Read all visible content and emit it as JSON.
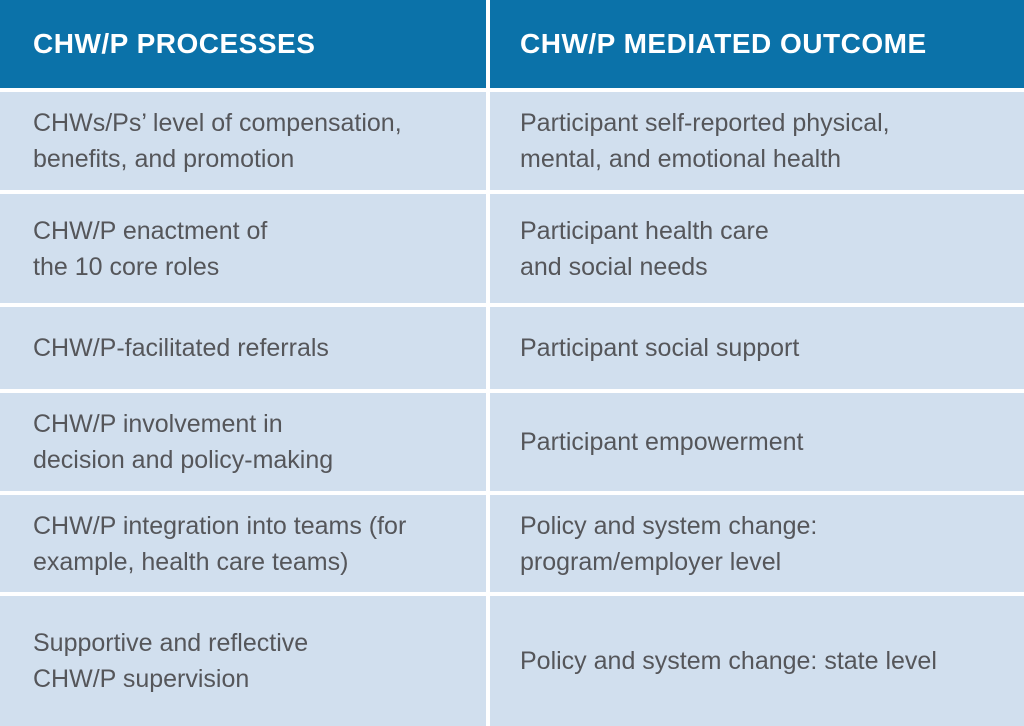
{
  "chart_data": {
    "type": "table",
    "columns": [
      "CHW/P PROCESSES",
      "CHW/P MEDIATED OUTCOME"
    ],
    "rows": [
      {
        "process": "CHWs/Ps’ level of compensation,\nbenefits, and promotion",
        "outcome": "Participant self-reported physical,\nmental, and emotional health"
      },
      {
        "process": "CHW/P enactment of\nthe 10 core roles",
        "outcome": "Participant health care\nand social needs"
      },
      {
        "process": "CHW/P-facilitated referrals",
        "outcome": "Participant social support"
      },
      {
        "process": "CHW/P involvement in\ndecision and policy-making",
        "outcome": "Participant empowerment"
      },
      {
        "process": "CHW/P integration into teams (for\nexample, health care teams)",
        "outcome": "Policy and system change:\nprogram/employer level"
      },
      {
        "process": "Supportive and reflective\nCHW/P supervision",
        "outcome": "Policy and system change: state level"
      }
    ],
    "layout": {
      "header_row": true,
      "column_divider": "white 4px",
      "row_divider": "white 4px"
    }
  },
  "colors": {
    "header_bg": "#0b72a9",
    "header_text": "#ffffff",
    "row_bg": "#d1dfee",
    "body_text": "#55565a",
    "divider": "#ffffff"
  }
}
